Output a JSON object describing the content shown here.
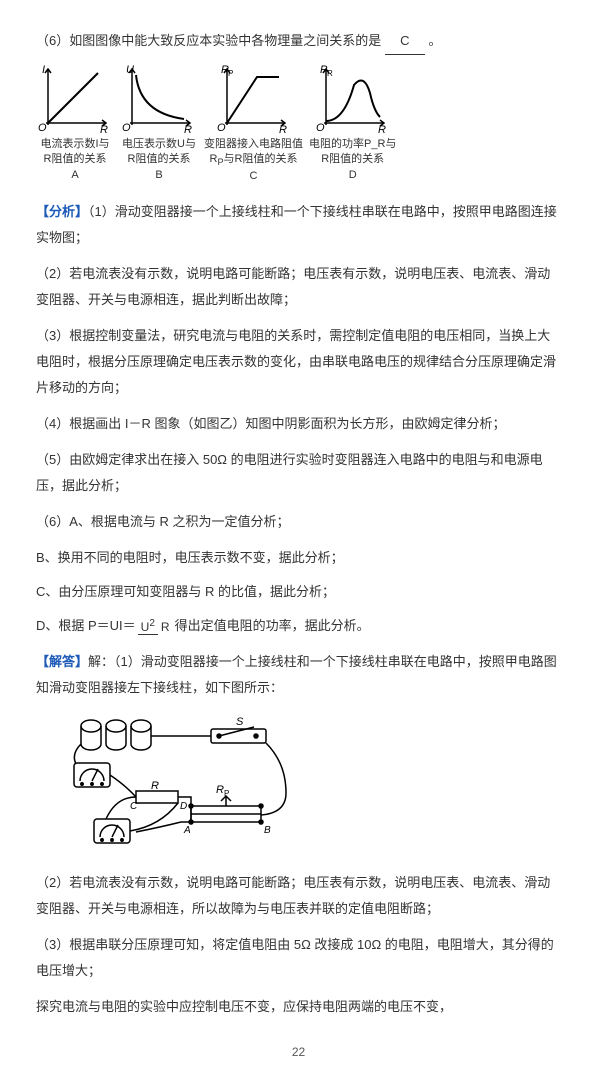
{
  "q6": {
    "prefix": "（6）如图图像中能大致反应本实验中各物理量之间关系的是",
    "answer": "C",
    "suffix": "。"
  },
  "graphs": {
    "axis_color": "#000",
    "items": [
      {
        "y": "I",
        "x": "R",
        "caption_l1": "电流表示数I与",
        "caption_l2": "R阻值的关系",
        "letter": "A",
        "type": "linear"
      },
      {
        "y": "U",
        "x": "R",
        "caption_l1": "电压表示数U与",
        "caption_l2": "R阻值的关系",
        "letter": "B",
        "type": "inverse"
      },
      {
        "y": "R_P",
        "yraw": "R",
        "ysub": "P",
        "x": "R",
        "caption_l1": "变阻器接入电路阻值",
        "caption_l2": "R_P与R阻值的关系",
        "letter": "C",
        "type": "ramp"
      },
      {
        "y": "P_R",
        "yraw": "P",
        "ysub": "R",
        "x": "R",
        "caption_l1": "电阻的功率P_R与",
        "caption_l2": "R阻值的关系",
        "letter": "D",
        "type": "peak"
      }
    ]
  },
  "fx_label": "【分析】",
  "fx": [
    "（1）滑动变阻器接一个上接线柱和一个下接线柱串联在电路中，按照甲电路图连接实物图；",
    "（2）若电流表没有示数，说明电路可能断路；电压表有示数，说明电压表、电流表、滑动变阻器、开关与电源相连，据此判断出故障；",
    "（3）根据控制变量法，研究电流与电阻的关系时，需控制定值电阻的电压相同，当换上大电阻时，根据分压原理确定电压表示数的变化，由串联电路电压的规律结合分压原理确定滑片移动的方向；",
    "（4）根据画出 I－R 图象（如图乙）知图中阴影面积为长方形，由欧姆定律分析；",
    "（5）由欧姆定律求出在接入 50Ω 的电阻进行实验时变阻器连入电路中的电阻与和电源电压，据此分析；",
    "（6）A、根据电流与 R 之积为一定值分析；"
  ],
  "letters": [
    {
      "t": "B、换用不同的电阻时，电压表示数不变，据此分析；"
    },
    {
      "t": "C、由分压原理可知变阻器与 R 的比值，据此分析；"
    }
  ],
  "d_line": {
    "pre": "D、根据 P＝UI＝",
    "num": "U",
    "sup": "2",
    "den": "R",
    "post": "得出定值电阻的功率，据此分析。"
  },
  "jd_label": "【解答】",
  "jd1": "解：（1）滑动变阻器接一个上接线柱和一个下接线柱串联在电路中，按照甲电路图知滑动变阻器接左下接线柱，如下图所示：",
  "circuit": {
    "labels": {
      "S": "S",
      "R": "R",
      "RP": "R_P",
      "A": "A",
      "B": "B",
      "C": "C",
      "D": "D"
    }
  },
  "jd2": "（2）若电流表没有示数，说明电路可能断路；电压表有示数，说明电压表、电流表、滑动变阻器、开关与电源相连，所以故障为与电压表并联的定值电阻断路；",
  "jd3a": "（3）根据串联分压原理可知，将定值电阻由 5Ω 改接成 10Ω 的电阻，电阻增大，其分得的电压增大；",
  "jd3b": "探究电流与电阻的实验中应控制电压不变，应保持电阻两端的电压不变，",
  "pagenum": "22"
}
